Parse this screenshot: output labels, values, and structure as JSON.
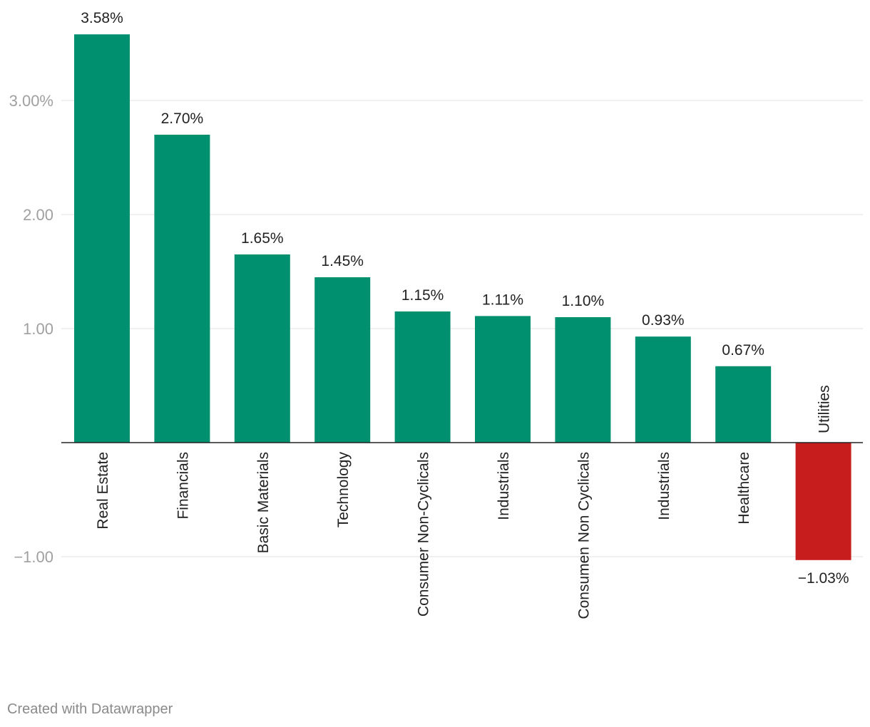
{
  "chart_data": {
    "type": "bar",
    "categories": [
      "Real Estate",
      "Financials",
      "Basic Materials",
      "Technology",
      "Consumer Non-Cyclicals",
      "Industrials",
      "Consumen Non Cyclicals",
      "Industrials",
      "Healthcare",
      "Utilities"
    ],
    "values": [
      3.58,
      2.7,
      1.65,
      1.45,
      1.15,
      1.11,
      1.1,
      0.93,
      0.67,
      -1.03
    ],
    "value_labels": [
      "3.58%",
      "2.70%",
      "1.65%",
      "1.45%",
      "1.15%",
      "1.11%",
      "1.10%",
      "0.93%",
      "0.67%",
      "−1.03%"
    ],
    "y_ticks": [
      {
        "value": 3,
        "label": "3.00%"
      },
      {
        "value": 2,
        "label": "2.00"
      },
      {
        "value": 1,
        "label": "1.00"
      },
      {
        "value": -1,
        "label": "−1.00"
      }
    ],
    "ylim": [
      -1.4,
      3.9
    ],
    "grid": true,
    "positive_color": "#008f6f",
    "negative_color": "#c71e1d"
  },
  "footer": {
    "credit": "Created with Datawrapper"
  }
}
